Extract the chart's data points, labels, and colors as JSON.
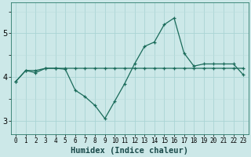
{
  "xlabel": "Humidex (Indice chaleur)",
  "background_color": "#cce8e8",
  "grid_color_major": "#aad4d4",
  "grid_color_minor": "#bbdddd",
  "line_color": "#1a6b5a",
  "x_values": [
    0,
    1,
    2,
    3,
    4,
    5,
    6,
    7,
    8,
    9,
    10,
    11,
    12,
    13,
    14,
    15,
    16,
    17,
    18,
    19,
    20,
    21,
    22,
    23
  ],
  "line1_y": [
    3.9,
    4.15,
    4.15,
    4.2,
    4.2,
    4.2,
    4.2,
    4.2,
    4.2,
    4.2,
    4.2,
    4.2,
    4.2,
    4.2,
    4.2,
    4.2,
    4.2,
    4.2,
    4.2,
    4.2,
    4.2,
    4.2,
    4.2,
    4.2
  ],
  "line2_y": [
    3.9,
    4.15,
    4.1,
    4.2,
    4.2,
    4.18,
    3.7,
    3.55,
    3.35,
    3.05,
    3.45,
    3.85,
    4.3,
    4.7,
    4.8,
    5.2,
    5.35,
    4.55,
    4.25,
    4.3,
    4.3,
    4.3,
    4.3,
    4.05
  ],
  "ylim": [
    2.7,
    5.7
  ],
  "xlim": [
    -0.5,
    23.5
  ],
  "yticks": [
    3,
    4,
    5
  ],
  "xticks": [
    0,
    1,
    2,
    3,
    4,
    5,
    6,
    7,
    8,
    9,
    10,
    11,
    12,
    13,
    14,
    15,
    16,
    17,
    18,
    19,
    20,
    21,
    22,
    23
  ],
  "tick_fontsize": 5.5,
  "xlabel_fontsize": 7.5,
  "ytick_fontsize": 7,
  "line_width": 0.9,
  "marker": "+",
  "marker_size": 3.5,
  "marker_edge_width": 0.9
}
